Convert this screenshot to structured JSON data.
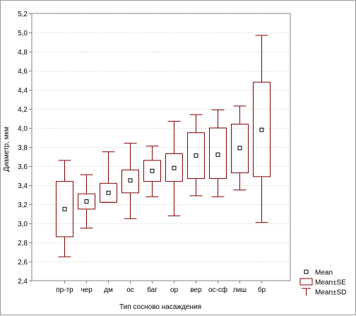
{
  "chart_data": {
    "type": "box",
    "xlabel": "Тип сосново насаждения",
    "ylabel": "Диаметр, мкм",
    "ylim": [
      2.4,
      5.2
    ],
    "yticks": [
      2.4,
      2.6,
      2.8,
      3.0,
      3.2,
      3.4,
      3.6,
      3.8,
      4.0,
      4.2,
      4.4,
      4.6,
      4.8,
      5.0,
      5.2
    ],
    "ytick_labels": [
      "2,4",
      "2,6",
      "2,8",
      "3,0",
      "3,2",
      "3,4",
      "3,6",
      "3,8",
      "4,0",
      "4,2",
      "4,4",
      "4,6",
      "4,8",
      "5,0",
      "5,2"
    ],
    "grid": true,
    "legend_position": "right",
    "legend": [
      {
        "kind": "mean",
        "label": "Mean"
      },
      {
        "kind": "se",
        "label": "Mean±SE"
      },
      {
        "kind": "sd",
        "label": "Mean±SD"
      }
    ],
    "groups": [
      {
        "label": "пр-тр",
        "mean": 3.15,
        "se_low": 2.86,
        "se_high": 3.44,
        "sd_low": 2.65,
        "sd_high": 3.66
      },
      {
        "label": "чер",
        "mean": 3.23,
        "se_low": 3.15,
        "se_high": 3.31,
        "sd_low": 2.95,
        "sd_high": 3.51
      },
      {
        "label": "дм",
        "mean": 3.32,
        "se_low": 3.22,
        "se_high": 3.42,
        "sd_low": 3.22,
        "sd_high": 3.75
      },
      {
        "label": "ос",
        "mean": 3.45,
        "se_low": 3.32,
        "se_high": 3.56,
        "sd_low": 3.05,
        "sd_high": 3.84
      },
      {
        "label": "баг",
        "mean": 3.55,
        "se_low": 3.44,
        "se_high": 3.66,
        "sd_low": 3.28,
        "sd_high": 3.81
      },
      {
        "label": "ор",
        "mean": 3.58,
        "se_low": 3.44,
        "se_high": 3.73,
        "sd_low": 3.08,
        "sd_high": 4.07
      },
      {
        "label": "вер",
        "mean": 3.71,
        "se_low": 3.47,
        "se_high": 3.95,
        "sd_low": 3.29,
        "sd_high": 4.14
      },
      {
        "label": "ос-сф",
        "mean": 3.72,
        "se_low": 3.47,
        "se_high": 4.0,
        "sd_low": 3.28,
        "sd_high": 4.19
      },
      {
        "label": "лиш",
        "mean": 3.79,
        "se_low": 3.53,
        "se_high": 4.04,
        "sd_low": 3.35,
        "sd_high": 4.23
      },
      {
        "label": "бр",
        "mean": 3.98,
        "se_low": 3.49,
        "se_high": 4.48,
        "sd_low": 3.01,
        "sd_high": 4.97
      }
    ],
    "colors": {
      "box": "#800000",
      "grid": "#c8c8c8",
      "axis": "#808080",
      "mean_marker": "#000000",
      "plot_bg": "#ffffff"
    }
  }
}
